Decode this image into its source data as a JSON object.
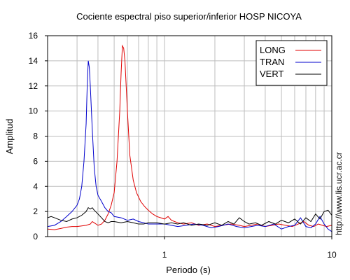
{
  "chart_data": {
    "type": "line",
    "title": "Cociente espectral piso superior/inferior  HOSP NICOYA",
    "xlabel": "Periodo (s)",
    "ylabel": "Amplitud",
    "x_scale": "log",
    "xlim": [
      0.2,
      10
    ],
    "ylim": [
      0,
      16
    ],
    "x_tick_labels": [
      {
        "value": 1,
        "label": "1"
      },
      {
        "value": 10,
        "label": "10"
      }
    ],
    "y_ticks": [
      0,
      2,
      4,
      6,
      8,
      10,
      12,
      14,
      16
    ],
    "grid": true,
    "legend_position": "top-right",
    "side_text": "http://www.lis.ucr.ac.cr",
    "series": [
      {
        "name": "LONG",
        "color": "#e00000",
        "points": [
          [
            0.2,
            0.6
          ],
          [
            0.22,
            0.55
          ],
          [
            0.24,
            0.65
          ],
          [
            0.26,
            0.75
          ],
          [
            0.28,
            0.8
          ],
          [
            0.3,
            0.8
          ],
          [
            0.32,
            0.85
          ],
          [
            0.34,
            0.9
          ],
          [
            0.36,
            1.0
          ],
          [
            0.37,
            1.2
          ],
          [
            0.38,
            1.1
          ],
          [
            0.4,
            0.9
          ],
          [
            0.42,
            1.0
          ],
          [
            0.44,
            1.3
          ],
          [
            0.46,
            1.8
          ],
          [
            0.48,
            2.5
          ],
          [
            0.5,
            3.5
          ],
          [
            0.52,
            6.0
          ],
          [
            0.54,
            10.0
          ],
          [
            0.55,
            13.0
          ],
          [
            0.56,
            15.2
          ],
          [
            0.57,
            15.0
          ],
          [
            0.58,
            14.0
          ],
          [
            0.6,
            10.0
          ],
          [
            0.62,
            6.5
          ],
          [
            0.65,
            4.5
          ],
          [
            0.68,
            3.5
          ],
          [
            0.72,
            2.8
          ],
          [
            0.76,
            2.4
          ],
          [
            0.8,
            2.1
          ],
          [
            0.85,
            1.8
          ],
          [
            0.9,
            1.6
          ],
          [
            0.95,
            1.5
          ],
          [
            1.0,
            1.4
          ],
          [
            1.05,
            1.6
          ],
          [
            1.1,
            1.3
          ],
          [
            1.2,
            1.1
          ],
          [
            1.3,
            1.0
          ],
          [
            1.45,
            1.1
          ],
          [
            1.6,
            0.9
          ],
          [
            1.8,
            1.0
          ],
          [
            2.0,
            0.8
          ],
          [
            2.2,
            0.9
          ],
          [
            2.5,
            1.0
          ],
          [
            2.8,
            0.9
          ],
          [
            3.0,
            0.8
          ],
          [
            3.3,
            0.9
          ],
          [
            3.6,
            1.0
          ],
          [
            4.0,
            0.8
          ],
          [
            4.4,
            0.9
          ],
          [
            4.8,
            1.0
          ],
          [
            5.3,
            0.9
          ],
          [
            5.8,
            0.8
          ],
          [
            6.3,
            1.0
          ],
          [
            6.8,
            1.2
          ],
          [
            7.3,
            0.9
          ],
          [
            7.8,
            0.8
          ],
          [
            8.3,
            1.0
          ],
          [
            8.8,
            0.9
          ],
          [
            9.3,
            0.8
          ],
          [
            10.0,
            0.9
          ]
        ]
      },
      {
        "name": "TRAN",
        "color": "#0000cc",
        "points": [
          [
            0.2,
            0.8
          ],
          [
            0.22,
            0.9
          ],
          [
            0.24,
            1.2
          ],
          [
            0.26,
            1.6
          ],
          [
            0.28,
            2.0
          ],
          [
            0.3,
            2.5
          ],
          [
            0.31,
            3.0
          ],
          [
            0.32,
            4.0
          ],
          [
            0.33,
            6.0
          ],
          [
            0.34,
            9.0
          ],
          [
            0.345,
            12.0
          ],
          [
            0.35,
            14.0
          ],
          [
            0.355,
            13.5
          ],
          [
            0.36,
            12.0
          ],
          [
            0.37,
            8.5
          ],
          [
            0.38,
            5.5
          ],
          [
            0.39,
            4.0
          ],
          [
            0.4,
            3.3
          ],
          [
            0.42,
            2.8
          ],
          [
            0.44,
            2.3
          ],
          [
            0.46,
            2.0
          ],
          [
            0.48,
            1.9
          ],
          [
            0.5,
            1.6
          ],
          [
            0.55,
            1.5
          ],
          [
            0.6,
            1.3
          ],
          [
            0.65,
            1.4
          ],
          [
            0.7,
            1.2
          ],
          [
            0.75,
            1.1
          ],
          [
            0.8,
            1.0
          ],
          [
            0.9,
            1.0
          ],
          [
            1.0,
            1.0
          ],
          [
            1.1,
            0.9
          ],
          [
            1.2,
            0.8
          ],
          [
            1.35,
            0.9
          ],
          [
            1.5,
            1.0
          ],
          [
            1.7,
            0.9
          ],
          [
            1.9,
            0.7
          ],
          [
            2.1,
            0.8
          ],
          [
            2.4,
            1.0
          ],
          [
            2.7,
            0.8
          ],
          [
            3.0,
            0.7
          ],
          [
            3.3,
            0.8
          ],
          [
            3.6,
            0.9
          ],
          [
            4.0,
            0.8
          ],
          [
            4.5,
            1.0
          ],
          [
            5.0,
            0.6
          ],
          [
            5.5,
            0.8
          ],
          [
            6.0,
            0.9
          ],
          [
            6.5,
            1.5
          ],
          [
            7.0,
            0.8
          ],
          [
            7.5,
            0.7
          ],
          [
            8.0,
            1.0
          ],
          [
            8.5,
            1.6
          ],
          [
            9.0,
            1.0
          ],
          [
            9.5,
            0.6
          ],
          [
            10.0,
            0.4
          ]
        ]
      },
      {
        "name": "VERT",
        "color": "#000000",
        "points": [
          [
            0.2,
            1.5
          ],
          [
            0.21,
            1.6
          ],
          [
            0.22,
            1.5
          ],
          [
            0.24,
            1.3
          ],
          [
            0.26,
            1.2
          ],
          [
            0.28,
            1.4
          ],
          [
            0.3,
            1.5
          ],
          [
            0.32,
            1.7
          ],
          [
            0.34,
            2.0
          ],
          [
            0.35,
            2.3
          ],
          [
            0.36,
            2.2
          ],
          [
            0.37,
            2.3
          ],
          [
            0.38,
            2.1
          ],
          [
            0.4,
            1.8
          ],
          [
            0.42,
            1.5
          ],
          [
            0.44,
            1.2
          ],
          [
            0.46,
            1.1
          ],
          [
            0.48,
            1.2
          ],
          [
            0.5,
            1.2
          ],
          [
            0.55,
            1.1
          ],
          [
            0.6,
            1.2
          ],
          [
            0.65,
            1.1
          ],
          [
            0.7,
            1.0
          ],
          [
            0.75,
            1.0
          ],
          [
            0.8,
            1.1
          ],
          [
            0.9,
            1.1
          ],
          [
            1.0,
            1.0
          ],
          [
            1.1,
            1.1
          ],
          [
            1.2,
            1.0
          ],
          [
            1.3,
            1.1
          ],
          [
            1.45,
            0.9
          ],
          [
            1.6,
            1.0
          ],
          [
            1.8,
            0.9
          ],
          [
            2.0,
            1.1
          ],
          [
            2.2,
            0.9
          ],
          [
            2.4,
            1.2
          ],
          [
            2.6,
            1.0
          ],
          [
            2.8,
            1.5
          ],
          [
            3.0,
            1.2
          ],
          [
            3.2,
            1.0
          ],
          [
            3.5,
            1.1
          ],
          [
            3.8,
            0.9
          ],
          [
            4.2,
            1.2
          ],
          [
            4.6,
            1.0
          ],
          [
            5.0,
            1.3
          ],
          [
            5.5,
            1.1
          ],
          [
            6.0,
            1.4
          ],
          [
            6.5,
            1.0
          ],
          [
            7.0,
            1.5
          ],
          [
            7.5,
            1.2
          ],
          [
            8.0,
            1.8
          ],
          [
            8.5,
            1.4
          ],
          [
            9.0,
            2.0
          ],
          [
            9.5,
            2.1
          ],
          [
            10.0,
            1.7
          ]
        ]
      }
    ]
  }
}
